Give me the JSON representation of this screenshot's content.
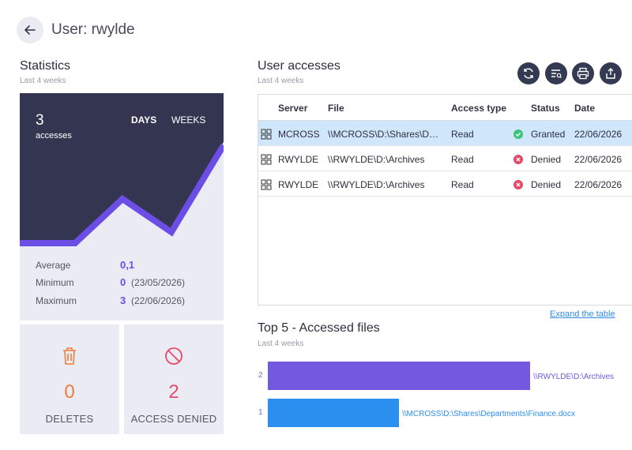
{
  "header": {
    "title": "User: rwylde"
  },
  "statistics": {
    "title": "Statistics",
    "subtitle": "Last 4 weeks",
    "count": "3",
    "count_label": "accesses",
    "toggle_days": "DAYS",
    "toggle_weeks": "WEEKS",
    "average_label": "Average",
    "average_value": "0,1",
    "minimum_label": "Minimum",
    "minimum_value": "0",
    "minimum_date": "(23/05/2026)",
    "maximum_label": "Maximum",
    "maximum_value": "3",
    "maximum_date": "(22/06/2026)"
  },
  "tiles": {
    "deletes": {
      "value": "0",
      "label": "DELETES"
    },
    "denied": {
      "value": "2",
      "label": "ACCESS DENIED"
    }
  },
  "accesses": {
    "title": "User accesses",
    "subtitle": "Last 4 weeks",
    "columns": [
      "Server",
      "File",
      "Access type",
      "Status",
      "Date"
    ],
    "rows": [
      {
        "server": "MCROSS",
        "file": "\\\\MCROSS\\D:\\Shares\\Departments\\Finance.docx",
        "access": "Read",
        "status": "Granted",
        "date": "22/06/2026"
      },
      {
        "server": "RWYLDE",
        "file": "\\\\RWYLDE\\D:\\Archives",
        "access": "Read",
        "status": "Denied",
        "date": "22/06/2026"
      },
      {
        "server": "RWYLDE",
        "file": "\\\\RWYLDE\\D:\\Archives",
        "access": "Read",
        "status": "Denied",
        "date": "22/06/2026"
      }
    ],
    "expand_link": "Expand the table"
  },
  "top5": {
    "title": "Top 5 - Accessed files",
    "subtitle": "Last 4 weeks"
  },
  "colors": {
    "accent_purple": "#6c4de6",
    "bar_blue": "#2b8ff0",
    "granted": "#3cc47c",
    "denied": "#e64a6b",
    "deletes_orange": "#f07c3a",
    "dark_panel": "#343651"
  },
  "icons": {
    "back": "arrow-left-icon",
    "refresh": "refresh-icon",
    "filter": "filter-list-icon",
    "print": "print-icon",
    "export": "export-icon",
    "server": "server-icon",
    "delete": "trash-icon",
    "denied": "forbidden-icon"
  },
  "chart_data": {
    "type": "bar",
    "title": "Top 5 - Accessed files",
    "categories": [
      "\\\\RWYLDE\\D:\\Archives",
      "\\\\MCROSS\\D:\\Shares\\Departments\\Finance.docx"
    ],
    "values": [
      2,
      1
    ],
    "colors": [
      "#7459e0",
      "#2b8ff0"
    ],
    "orientation": "horizontal"
  }
}
